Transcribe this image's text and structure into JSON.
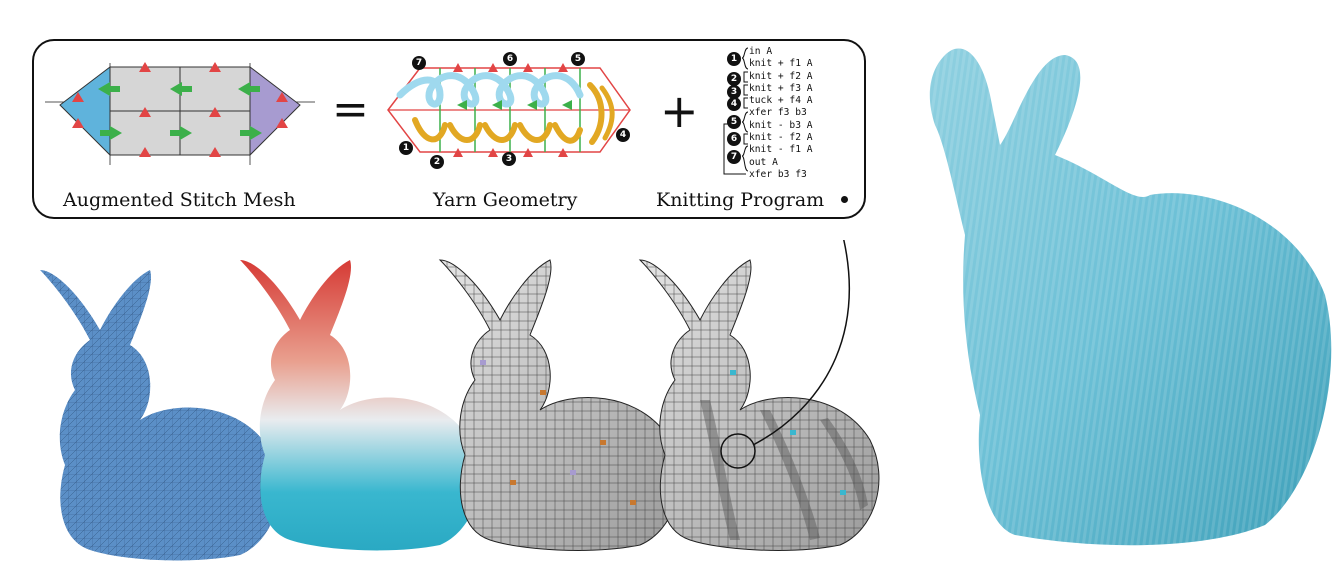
{
  "captions": {
    "mesh": "Augmented Stitch Mesh",
    "yarn": "Yarn Geometry",
    "program": "Knitting Program"
  },
  "operators": {
    "equals": "=",
    "plus": "+"
  },
  "program_lines": [
    "in A",
    "knit + f1 A",
    "knit + f2 A",
    "knit + f3 A",
    "tuck + f4 A",
    "xfer f3 b3",
    "knit - b3 A",
    "knit - f2 A",
    "knit - f1 A",
    "out A",
    "xfer b3 f3"
  ],
  "program_steps": [
    "1",
    "2",
    "3",
    "4",
    "5",
    "6",
    "7"
  ],
  "yarn_steps": [
    "1",
    "2",
    "3",
    "4",
    "5",
    "6",
    "7"
  ],
  "colors": {
    "mesh_blue": "#5fb3dc",
    "mesh_purple": "#a79bd0",
    "mesh_gray": "#d6d6d6",
    "triangle_red": "#e24545",
    "arrow_green": "#3cb04a",
    "yarn_blue": "#9fd9ee",
    "yarn_gold": "#e2a823",
    "bunny_blue": "#5b8fc7",
    "ear_red": "#d63a35",
    "body_teal": "#39b7cf",
    "knit_blue": "#6cc0d6"
  },
  "icons": [
    "triangle-marker-icon",
    "green-arrow-icon",
    "step-number-icon",
    "pointer-dot-icon"
  ]
}
